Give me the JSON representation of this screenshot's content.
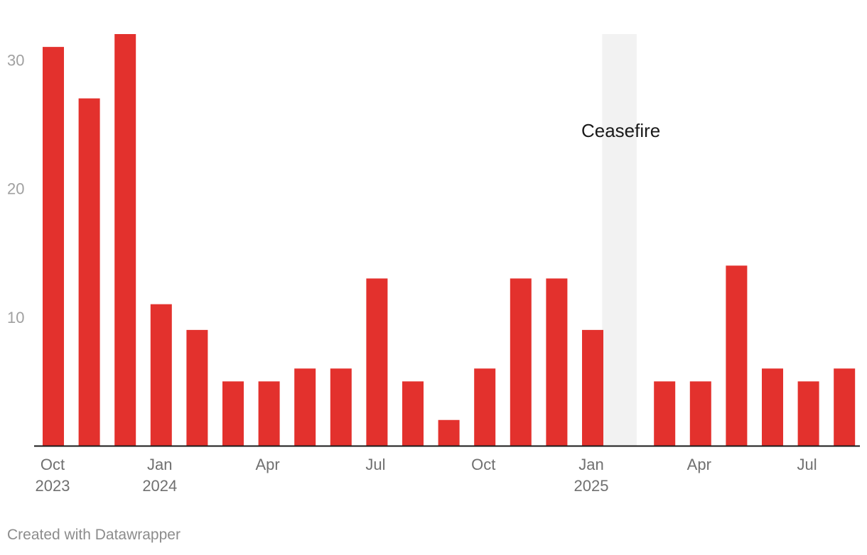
{
  "chart_data": {
    "type": "bar",
    "categories": [
      "2023-10",
      "2023-11",
      "2023-12",
      "2024-01",
      "2024-02",
      "2024-03",
      "2024-04",
      "2024-05",
      "2024-06",
      "2024-07",
      "2024-08",
      "2024-09",
      "2024-10",
      "2024-11",
      "2024-12",
      "2025-01",
      "2025-02",
      "2025-03",
      "2025-04",
      "2025-05",
      "2025-06",
      "2025-07",
      "2025-08"
    ],
    "values": [
      31,
      27,
      32,
      11,
      9,
      5,
      5,
      6,
      6,
      13,
      5,
      2,
      6,
      13,
      13,
      9,
      0,
      5,
      5,
      14,
      6,
      5,
      6
    ],
    "ylim": [
      0,
      32
    ],
    "yticks": [
      10,
      20,
      30
    ],
    "x_ticks": [
      {
        "index": 0,
        "line1": "Oct",
        "line2": "2023"
      },
      {
        "index": 3,
        "line1": "Jan",
        "line2": "2024"
      },
      {
        "index": 6,
        "line1": "Apr",
        "line2": ""
      },
      {
        "index": 9,
        "line1": "Jul",
        "line2": ""
      },
      {
        "index": 12,
        "line1": "Oct",
        "line2": ""
      },
      {
        "index": 15,
        "line1": "Jan",
        "line2": "2025"
      },
      {
        "index": 18,
        "line1": "Apr",
        "line2": ""
      },
      {
        "index": 21,
        "line1": "Jul",
        "line2": ""
      }
    ],
    "annotations": [
      {
        "label": "Ceasefire",
        "from_index": 15.5,
        "to_index": 16.5
      }
    ],
    "grid": false,
    "legend": "none",
    "colors": {
      "bar": "#e3312d",
      "shade": "#f2f2f2",
      "axis": "#1a1a1a"
    }
  },
  "footer": {
    "credit": "Created with Datawrapper"
  }
}
